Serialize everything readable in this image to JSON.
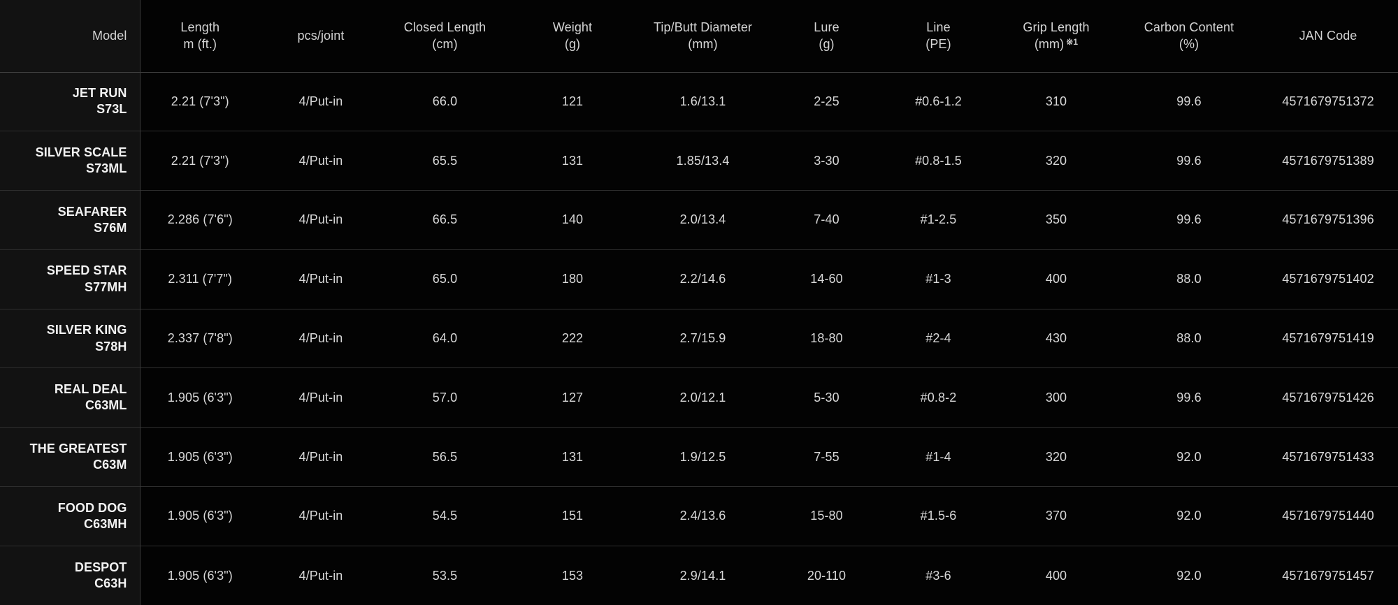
{
  "colors": {
    "background": "#000000",
    "model_column_bg": "#121212",
    "row_divider": "#2e2e2e",
    "column_divider": "#3a3a3a",
    "header_text": "#d4d4d4",
    "cell_text": "#d8d8d8",
    "model_text": "#f2f2f2"
  },
  "table": {
    "columns": [
      {
        "key": "model",
        "label": "Model",
        "sub": "",
        "sup": ""
      },
      {
        "key": "length",
        "label": "Length",
        "sub": "m (ft.)",
        "sup": ""
      },
      {
        "key": "pcs_joint",
        "label": "pcs/joint",
        "sub": "",
        "sup": ""
      },
      {
        "key": "closed_length",
        "label": "Closed Length",
        "sub": "(cm)",
        "sup": ""
      },
      {
        "key": "weight",
        "label": "Weight",
        "sub": "(g)",
        "sup": ""
      },
      {
        "key": "tip_butt",
        "label": "Tip/Butt Diameter",
        "sub": "(mm)",
        "sup": ""
      },
      {
        "key": "lure",
        "label": "Lure",
        "sub": "(g)",
        "sup": ""
      },
      {
        "key": "line",
        "label": "Line",
        "sub": "(PE)",
        "sup": ""
      },
      {
        "key": "grip_length",
        "label": "Grip Length",
        "sub": "(mm)",
        "sup": "※1"
      },
      {
        "key": "carbon",
        "label": "Carbon Content",
        "sub": "(%)",
        "sup": ""
      },
      {
        "key": "jan",
        "label": "JAN Code",
        "sub": "",
        "sup": ""
      }
    ],
    "rows": [
      {
        "model_name": "JET RUN",
        "model_code": "S73L",
        "length": "2.21 (7'3\")",
        "pcs_joint": "4/Put-in",
        "closed_length": "66.0",
        "weight": "121",
        "tip_butt": "1.6/13.1",
        "lure": "2-25",
        "line": "#0.6-1.2",
        "grip_length": "310",
        "carbon": "99.6",
        "jan": "4571679751372"
      },
      {
        "model_name": "SILVER SCALE",
        "model_code": "S73ML",
        "length": "2.21 (7'3\")",
        "pcs_joint": "4/Put-in",
        "closed_length": "65.5",
        "weight": "131",
        "tip_butt": "1.85/13.4",
        "lure": "3-30",
        "line": "#0.8-1.5",
        "grip_length": "320",
        "carbon": "99.6",
        "jan": "4571679751389"
      },
      {
        "model_name": "SEAFARER",
        "model_code": "S76M",
        "length": "2.286 (7'6\")",
        "pcs_joint": "4/Put-in",
        "closed_length": "66.5",
        "weight": "140",
        "tip_butt": "2.0/13.4",
        "lure": "7-40",
        "line": "#1-2.5",
        "grip_length": "350",
        "carbon": "99.6",
        "jan": "4571679751396"
      },
      {
        "model_name": "SPEED STAR",
        "model_code": "S77MH",
        "length": "2.311 (7'7\")",
        "pcs_joint": "4/Put-in",
        "closed_length": "65.0",
        "weight": "180",
        "tip_butt": "2.2/14.6",
        "lure": "14-60",
        "line": "#1-3",
        "grip_length": "400",
        "carbon": "88.0",
        "jan": "4571679751402"
      },
      {
        "model_name": "SILVER KING",
        "model_code": "S78H",
        "length": "2.337 (7'8\")",
        "pcs_joint": "4/Put-in",
        "closed_length": "64.0",
        "weight": "222",
        "tip_butt": "2.7/15.9",
        "lure": "18-80",
        "line": "#2-4",
        "grip_length": "430",
        "carbon": "88.0",
        "jan": "4571679751419"
      },
      {
        "model_name": "REAL DEAL",
        "model_code": "C63ML",
        "length": "1.905 (6'3\")",
        "pcs_joint": "4/Put-in",
        "closed_length": "57.0",
        "weight": "127",
        "tip_butt": "2.0/12.1",
        "lure": "5-30",
        "line": "#0.8-2",
        "grip_length": "300",
        "carbon": "99.6",
        "jan": "4571679751426"
      },
      {
        "model_name": "THE GREATEST",
        "model_code": "C63M",
        "length": "1.905 (6'3\")",
        "pcs_joint": "4/Put-in",
        "closed_length": "56.5",
        "weight": "131",
        "tip_butt": "1.9/12.5",
        "lure": "7-55",
        "line": "#1-4",
        "grip_length": "320",
        "carbon": "92.0",
        "jan": "4571679751433"
      },
      {
        "model_name": "FOOD DOG",
        "model_code": "C63MH",
        "length": "1.905 (6'3\")",
        "pcs_joint": "4/Put-in",
        "closed_length": "54.5",
        "weight": "151",
        "tip_butt": "2.4/13.6",
        "lure": "15-80",
        "line": "#1.5-6",
        "grip_length": "370",
        "carbon": "92.0",
        "jan": "4571679751440"
      },
      {
        "model_name": "DESPOT",
        "model_code": "C63H",
        "length": "1.905 (6'3\")",
        "pcs_joint": "4/Put-in",
        "closed_length": "53.5",
        "weight": "153",
        "tip_butt": "2.9/14.1",
        "lure": "20-110",
        "line": "#3-6",
        "grip_length": "400",
        "carbon": "92.0",
        "jan": "4571679751457"
      }
    ]
  },
  "chart_data": {
    "type": "table",
    "title": "Rod specification table",
    "columns": [
      "Model",
      "Length m (ft.)",
      "pcs/joint",
      "Closed Length (cm)",
      "Weight (g)",
      "Tip/Butt Diameter (mm)",
      "Lure (g)",
      "Line (PE)",
      "Grip Length (mm) ※1",
      "Carbon Content (%)",
      "JAN Code"
    ],
    "rows": [
      [
        "JET RUN S73L",
        "2.21 (7'3\")",
        "4/Put-in",
        "66.0",
        "121",
        "1.6/13.1",
        "2-25",
        "#0.6-1.2",
        "310",
        "99.6",
        "4571679751372"
      ],
      [
        "SILVER SCALE S73ML",
        "2.21 (7'3\")",
        "4/Put-in",
        "65.5",
        "131",
        "1.85/13.4",
        "3-30",
        "#0.8-1.5",
        "320",
        "99.6",
        "4571679751389"
      ],
      [
        "SEAFARER S76M",
        "2.286 (7'6\")",
        "4/Put-in",
        "66.5",
        "140",
        "2.0/13.4",
        "7-40",
        "#1-2.5",
        "350",
        "99.6",
        "4571679751396"
      ],
      [
        "SPEED STAR S77MH",
        "2.311 (7'7\")",
        "4/Put-in",
        "65.0",
        "180",
        "2.2/14.6",
        "14-60",
        "#1-3",
        "400",
        "88.0",
        "4571679751402"
      ],
      [
        "SILVER KING S78H",
        "2.337 (7'8\")",
        "4/Put-in",
        "64.0",
        "222",
        "2.7/15.9",
        "18-80",
        "#2-4",
        "430",
        "88.0",
        "4571679751419"
      ],
      [
        "REAL DEAL C63ML",
        "1.905 (6'3\")",
        "4/Put-in",
        "57.0",
        "127",
        "2.0/12.1",
        "5-30",
        "#0.8-2",
        "300",
        "99.6",
        "4571679751426"
      ],
      [
        "THE GREATEST C63M",
        "1.905 (6'3\")",
        "4/Put-in",
        "56.5",
        "131",
        "1.9/12.5",
        "7-55",
        "#1-4",
        "320",
        "92.0",
        "4571679751433"
      ],
      [
        "FOOD DOG C63MH",
        "1.905 (6'3\")",
        "4/Put-in",
        "54.5",
        "151",
        "2.4/13.6",
        "15-80",
        "#1.5-6",
        "370",
        "92.0",
        "4571679751440"
      ],
      [
        "DESPOT C63H",
        "1.905 (6'3\")",
        "4/Put-in",
        "53.5",
        "153",
        "2.9/14.1",
        "20-110",
        "#3-6",
        "400",
        "92.0",
        "4571679751457"
      ]
    ]
  }
}
